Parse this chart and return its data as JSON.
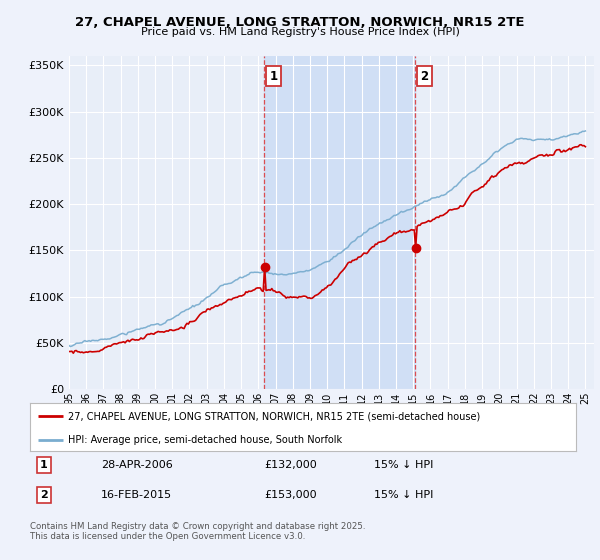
{
  "title_line1": "27, CHAPEL AVENUE, LONG STRATTON, NORWICH, NR15 2TE",
  "title_line2": "Price paid vs. HM Land Registry's House Price Index (HPI)",
  "background_color": "#eef2fb",
  "plot_bg": "#e8eef8",
  "highlight_color": "#d0dff5",
  "red_color": "#cc0000",
  "blue_color": "#7aadcf",
  "sale1_date": "28-APR-2006",
  "sale1_price": "£132,000",
  "sale1_note": "15% ↓ HPI",
  "sale2_date": "16-FEB-2015",
  "sale2_price": "£153,000",
  "sale2_note": "15% ↓ HPI",
  "legend_line1": "27, CHAPEL AVENUE, LONG STRATTON, NORWICH, NR15 2TE (semi-detached house)",
  "legend_line2": "HPI: Average price, semi-detached house, South Norfolk",
  "footer": "Contains HM Land Registry data © Crown copyright and database right 2025.\nThis data is licensed under the Open Government Licence v3.0.",
  "ylim": [
    0,
    360000
  ],
  "yticks": [
    0,
    50000,
    100000,
    150000,
    200000,
    250000,
    300000,
    350000
  ],
  "ytick_labels": [
    "£0",
    "£50K",
    "£100K",
    "£150K",
    "£200K",
    "£250K",
    "£300K",
    "£350K"
  ],
  "sale1_year": 2006.33,
  "sale2_year": 2015.12,
  "sale1_value": 132000,
  "sale2_value": 153000
}
